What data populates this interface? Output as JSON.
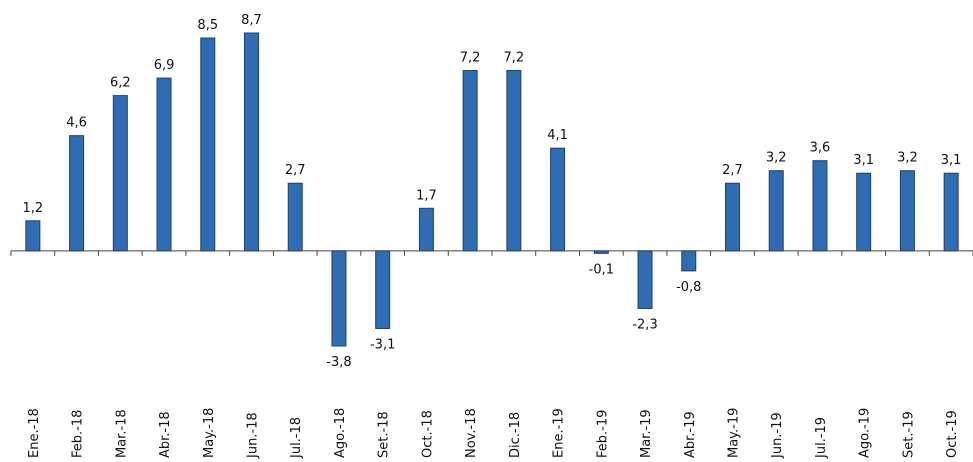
{
  "chart_data": {
    "type": "bar",
    "categories": [
      "Ene.-18",
      "Feb.-18",
      "Mar.-18",
      "Abr.-18",
      "May.-18",
      "Jun.-18",
      "Jul.-18",
      "Ago.-18",
      "Set.-18",
      "Oct.-18",
      "Nov.-18",
      "Dic.-18",
      "Ene.-19",
      "Feb.-19",
      "Mar.-19",
      "Abr.-19",
      "May.-19",
      "Jun.-19",
      "Jul.-19",
      "Ago.-19",
      "Set.-19",
      "Oct.-19"
    ],
    "values": [
      1.2,
      4.6,
      6.2,
      6.9,
      8.5,
      8.7,
      2.7,
      -3.8,
      -3.1,
      1.7,
      7.2,
      7.2,
      4.1,
      -0.1,
      -2.3,
      -0.8,
      2.7,
      3.2,
      3.6,
      3.1,
      3.2,
      3.1
    ],
    "value_labels": [
      "1,2",
      "4,6",
      "6,2",
      "6,9",
      "8,5",
      "8,7",
      "2,7",
      "-3,8",
      "-3,1",
      "1,7",
      "7,2",
      "7,2",
      "4,1",
      "-0,1",
      "-2,3",
      "-0,8",
      "2,7",
      "3,2",
      "3,6",
      "3,1",
      "3,2",
      "3,1"
    ],
    "color": "#2e6db4"
  }
}
